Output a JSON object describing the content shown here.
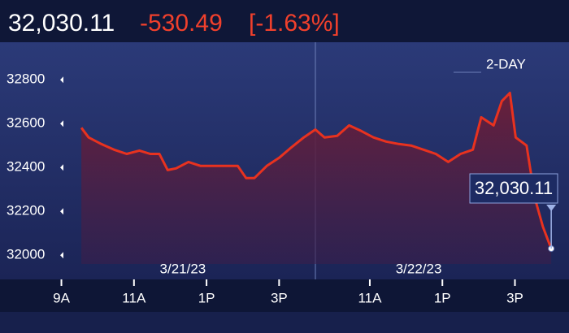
{
  "header": {
    "value": "32,030.11",
    "change": "-530.49",
    "percent": "[-1.63%]"
  },
  "chart_data": {
    "type": "area-line",
    "range_label": "2-DAY",
    "color": "#e8321f",
    "sessions": [
      "3/21/23",
      "3/22/23"
    ],
    "x": [
      0.05,
      0.25,
      0.6,
      0.95,
      1.3,
      1.65,
      1.95,
      2.2,
      2.43,
      2.66,
      3.0,
      3.34,
      3.68,
      4.02,
      4.36,
      4.59,
      4.82,
      5.16,
      5.5,
      5.84,
      6.18,
      6.5,
      6.75,
      7.1,
      7.43,
      7.77,
      8.1,
      8.45,
      8.8,
      9.14,
      9.48,
      9.82,
      10.16,
      10.5,
      10.84,
      11.07,
      11.41,
      11.64,
      11.86,
      12.02,
      12.32,
      12.55,
      12.77,
      13.0
    ],
    "values": [
      32581,
      32537,
      32507,
      32481,
      32462,
      32477,
      32462,
      32462,
      32388,
      32396,
      32425,
      32407,
      32407,
      32407,
      32407,
      32352,
      32352,
      32407,
      32444,
      32492,
      32537,
      32573,
      32537,
      32544,
      32592,
      32566,
      32537,
      32518,
      32507,
      32500,
      32481,
      32462,
      32425,
      32462,
      32481,
      32629,
      32592,
      32703,
      32740,
      32537,
      32500,
      32259,
      32130,
      32030.11
    ],
    "xlim": [
      -0.4,
      13.4
    ],
    "xticks": [
      {
        "value": -0.5,
        "label": "9A"
      },
      {
        "value": 1.5,
        "label": "11A"
      },
      {
        "value": 3.5,
        "label": "1P"
      },
      {
        "value": 5.5,
        "label": "3P"
      },
      {
        "value": 8,
        "label": "11A"
      },
      {
        "value": 10,
        "label": "1P"
      },
      {
        "value": 12,
        "label": "3P"
      }
    ],
    "ylim": [
      31960,
      32960
    ],
    "yticks": [
      32000,
      32200,
      32400,
      32600,
      32800
    ]
  }
}
